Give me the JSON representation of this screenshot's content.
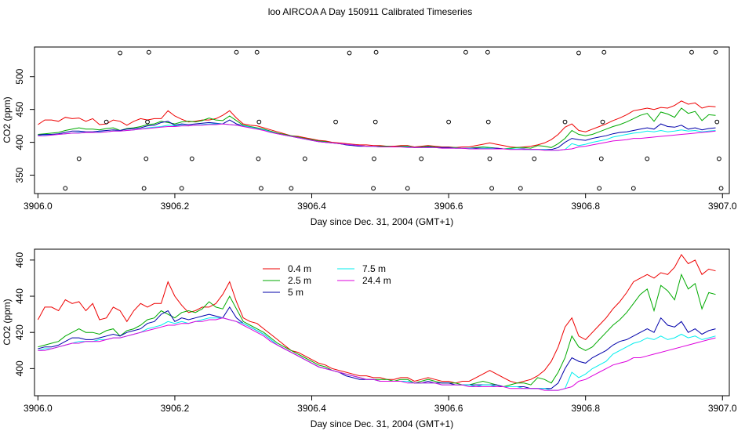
{
  "figure_title": "loo AIRCOA A  Day 150911  Calibrated Timeseries",
  "colors": {
    "0.4 m": "#ee0000",
    "2.5 m": "#00aa00",
    "5 m": "#0000aa",
    "7.5 m": "#00eeee",
    "24.4 m": "#dd00dd"
  },
  "chart_data": [
    {
      "type": "line",
      "title": "",
      "xlabel": "Day since Dec. 31, 2004 (GMT+1)",
      "ylabel": "CO2 (ppm)",
      "xlim": [
        3905.995,
        3907.01
      ],
      "ylim": [
        322,
        545
      ],
      "xticks": [
        3906.0,
        3906.2,
        3906.4,
        3906.6,
        3906.8,
        3907.0
      ],
      "xtick_labels": [
        "3906.0",
        "3906.2",
        "3906.4",
        "3906.6",
        "3906.8",
        "3907.0"
      ],
      "yticks": [
        350,
        400,
        450,
        500
      ],
      "ytick_labels": [
        "350",
        "400",
        "450",
        "500"
      ],
      "grid": false,
      "legend": "none",
      "open_circles": [
        [
          3906.04,
          330
        ],
        [
          3906.06,
          375
        ],
        [
          3906.1,
          431
        ],
        [
          3906.12,
          536
        ],
        [
          3906.155,
          330
        ],
        [
          3906.158,
          375
        ],
        [
          3906.16,
          431
        ],
        [
          3906.162,
          537
        ],
        [
          3906.21,
          330
        ],
        [
          3906.225,
          375
        ],
        [
          3906.29,
          537
        ],
        [
          3906.32,
          537
        ],
        [
          3906.322,
          375
        ],
        [
          3906.323,
          431
        ],
        [
          3906.326,
          330
        ],
        [
          3906.37,
          330
        ],
        [
          3906.39,
          375
        ],
        [
          3906.435,
          431
        ],
        [
          3906.455,
          536
        ],
        [
          3906.49,
          330
        ],
        [
          3906.491,
          375
        ],
        [
          3906.493,
          431
        ],
        [
          3906.494,
          537
        ],
        [
          3906.54,
          330
        ],
        [
          3906.56,
          375
        ],
        [
          3906.6,
          431
        ],
        [
          3906.625,
          537
        ],
        [
          3906.657,
          537
        ],
        [
          3906.658,
          431
        ],
        [
          3906.66,
          375
        ],
        [
          3906.663,
          330
        ],
        [
          3906.705,
          330
        ],
        [
          3906.725,
          375
        ],
        [
          3906.77,
          431
        ],
        [
          3906.79,
          536
        ],
        [
          3906.82,
          330
        ],
        [
          3906.823,
          375
        ],
        [
          3906.825,
          431
        ],
        [
          3906.827,
          537
        ],
        [
          3906.87,
          330
        ],
        [
          3906.89,
          375
        ],
        [
          3906.955,
          537
        ],
        [
          3906.99,
          537
        ],
        [
          3906.992,
          431
        ],
        [
          3906.995,
          375
        ],
        [
          3906.998,
          330
        ]
      ],
      "series_ref": "lower"
    },
    {
      "type": "line",
      "title": "",
      "xlabel": "Day since Dec. 31, 2004 (GMT+1)",
      "ylabel": "CO2 (ppm)",
      "xlim": [
        3905.995,
        3907.01
      ],
      "ylim": [
        385,
        466
      ],
      "xticks": [
        3906.0,
        3906.2,
        3906.4,
        3906.6,
        3906.8,
        3907.0
      ],
      "xtick_labels": [
        "3906.0",
        "3906.2",
        "3906.4",
        "3906.6",
        "3906.8",
        "3907.0"
      ],
      "yticks": [
        400,
        420,
        440,
        460
      ],
      "ytick_labels": [
        "400",
        "420",
        "440",
        "460"
      ],
      "grid": false,
      "legend": "top-left",
      "x": [
        3906.0,
        3906.01,
        3906.02,
        3906.03,
        3906.04,
        3906.05,
        3906.06,
        3906.07,
        3906.08,
        3906.09,
        3906.1,
        3906.11,
        3906.12,
        3906.13,
        3906.14,
        3906.15,
        3906.16,
        3906.17,
        3906.18,
        3906.19,
        3906.2,
        3906.21,
        3906.22,
        3906.23,
        3906.24,
        3906.25,
        3906.26,
        3906.27,
        3906.28,
        3906.29,
        3906.3,
        3906.31,
        3906.32,
        3906.33,
        3906.34,
        3906.35,
        3906.36,
        3906.37,
        3906.38,
        3906.39,
        3906.4,
        3906.41,
        3906.42,
        3906.43,
        3906.44,
        3906.45,
        3906.46,
        3906.47,
        3906.48,
        3906.49,
        3906.5,
        3906.51,
        3906.52,
        3906.53,
        3906.54,
        3906.55,
        3906.56,
        3906.57,
        3906.58,
        3906.59,
        3906.6,
        3906.61,
        3906.62,
        3906.63,
        3906.64,
        3906.65,
        3906.66,
        3906.67,
        3906.68,
        3906.69,
        3906.7,
        3906.71,
        3906.72,
        3906.73,
        3906.74,
        3906.75,
        3906.76,
        3906.77,
        3906.78,
        3906.79,
        3906.8,
        3906.81,
        3906.82,
        3906.83,
        3906.84,
        3906.85,
        3906.86,
        3906.87,
        3906.88,
        3906.89,
        3906.9,
        3906.91,
        3906.92,
        3906.93,
        3906.94,
        3906.95,
        3906.96,
        3906.97,
        3906.98,
        3906.99
      ],
      "series": [
        {
          "name": "0.4 m",
          "values": [
            427,
            434,
            434,
            432,
            438,
            436,
            437,
            432,
            436,
            427,
            428,
            434,
            432,
            426,
            432,
            436,
            434,
            436,
            436,
            448,
            440,
            435,
            431,
            432,
            434,
            434,
            436,
            441,
            448,
            437,
            428,
            426,
            425,
            422,
            419,
            416,
            413,
            410,
            409,
            407,
            405,
            403,
            402,
            400,
            399,
            398,
            397,
            396,
            396,
            395,
            395,
            394,
            394,
            395,
            395,
            393,
            394,
            395,
            394,
            393,
            393,
            392,
            393,
            393,
            395,
            397,
            399,
            397,
            395,
            393,
            392,
            393,
            394,
            396,
            399,
            404,
            412,
            423,
            428,
            418,
            416,
            420,
            424,
            428,
            433,
            437,
            442,
            448,
            450,
            452,
            450,
            453,
            452,
            456,
            463,
            458,
            460,
            452,
            455,
            454
          ]
        },
        {
          "name": "2.5 m",
          "values": [
            412,
            413,
            414,
            415,
            418,
            420,
            422,
            420,
            420,
            419,
            421,
            422,
            418,
            421,
            422,
            424,
            427,
            428,
            432,
            430,
            428,
            431,
            432,
            431,
            433,
            437,
            434,
            433,
            440,
            433,
            426,
            424,
            422,
            420,
            417,
            414,
            412,
            410,
            408,
            406,
            404,
            402,
            401,
            399,
            398,
            397,
            396,
            395,
            394,
            394,
            394,
            394,
            393,
            394,
            394,
            392,
            393,
            394,
            393,
            392,
            392,
            392,
            391,
            391,
            392,
            393,
            392,
            391,
            390,
            391,
            392,
            392,
            391,
            395,
            394,
            392,
            398,
            406,
            418,
            412,
            410,
            412,
            416,
            420,
            424,
            427,
            431,
            436,
            441,
            444,
            432,
            446,
            443,
            438,
            452,
            444,
            447,
            433,
            442,
            441
          ]
        },
        {
          "name": "5 m",
          "values": [
            411,
            412,
            412,
            413,
            415,
            417,
            417,
            416,
            416,
            417,
            418,
            419,
            418,
            420,
            421,
            422,
            425,
            426,
            430,
            432,
            426,
            428,
            427,
            428,
            429,
            430,
            429,
            428,
            434,
            428,
            425,
            423,
            421,
            419,
            416,
            413,
            411,
            409,
            407,
            405,
            403,
            401,
            400,
            399,
            398,
            396,
            395,
            394,
            394,
            394,
            393,
            393,
            393,
            393,
            393,
            392,
            392,
            393,
            392,
            392,
            392,
            391,
            391,
            391,
            391,
            391,
            391,
            391,
            390,
            390,
            390,
            390,
            389,
            389,
            389,
            389,
            392,
            400,
            406,
            404,
            403,
            406,
            408,
            410,
            413,
            415,
            416,
            418,
            420,
            422,
            420,
            428,
            424,
            423,
            426,
            420,
            422,
            419,
            421,
            422
          ]
        },
        {
          "name": "7.5 m",
          "values": [
            410,
            411,
            411,
            412,
            413,
            414,
            415,
            415,
            415,
            416,
            416,
            417,
            417,
            418,
            419,
            420,
            422,
            423,
            424,
            426,
            425,
            426,
            425,
            426,
            427,
            428,
            428,
            428,
            427,
            426,
            425,
            423,
            421,
            419,
            416,
            413,
            411,
            409,
            407,
            405,
            403,
            401,
            400,
            399,
            398,
            397,
            396,
            395,
            394,
            394,
            393,
            393,
            393,
            393,
            393,
            392,
            392,
            392,
            392,
            391,
            391,
            391,
            391,
            391,
            390,
            391,
            391,
            390,
            390,
            390,
            390,
            389,
            389,
            389,
            389,
            388,
            388,
            389,
            398,
            395,
            397,
            400,
            402,
            404,
            408,
            410,
            412,
            414,
            415,
            417,
            416,
            418,
            416,
            417,
            419,
            417,
            418,
            416,
            417,
            418
          ]
        },
        {
          "name": "24.4 m",
          "values": [
            410,
            410,
            411,
            412,
            413,
            414,
            414,
            415,
            415,
            415,
            416,
            417,
            417,
            418,
            419,
            420,
            421,
            422,
            423,
            424,
            424,
            425,
            425,
            426,
            426,
            427,
            427,
            428,
            427,
            426,
            424,
            422,
            420,
            418,
            415,
            413,
            411,
            409,
            407,
            405,
            403,
            401,
            400,
            399,
            398,
            397,
            396,
            395,
            394,
            394,
            393,
            393,
            393,
            393,
            392,
            392,
            392,
            392,
            392,
            391,
            391,
            391,
            391,
            390,
            390,
            390,
            390,
            390,
            390,
            389,
            389,
            389,
            389,
            389,
            388,
            388,
            388,
            389,
            390,
            393,
            394,
            396,
            398,
            400,
            402,
            403,
            404,
            406,
            406,
            407,
            408,
            409,
            410,
            411,
            412,
            413,
            414,
            415,
            416,
            417
          ]
        }
      ]
    }
  ]
}
